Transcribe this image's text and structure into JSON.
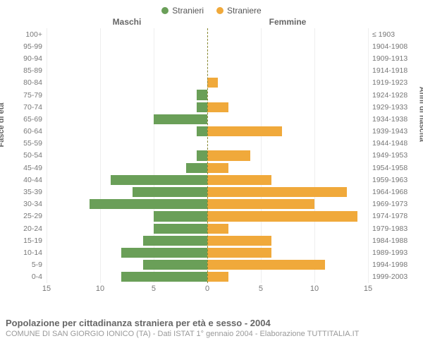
{
  "chart": {
    "type": "population-pyramid",
    "legend": [
      {
        "label": "Stranieri",
        "color": "#6a9f58"
      },
      {
        "label": "Straniere",
        "color": "#f0a93b"
      }
    ],
    "columns": {
      "left": "Maschi",
      "right": "Femmine"
    },
    "y_axis_left_title": "Fasce di età",
    "y_axis_right_title": "Anni di nascita",
    "x_max": 15,
    "x_ticks": [
      15,
      10,
      5,
      0,
      5,
      10,
      15
    ],
    "grid_color": "#eeeeee",
    "centerline_color": "#888832",
    "background_color": "#ffffff",
    "bar_colors": {
      "male": "#6a9f58",
      "female": "#f0a93b"
    },
    "label_fontsize": 10.5,
    "tick_fontsize": 11,
    "rows": [
      {
        "age": "100+",
        "birth": "≤ 1903",
        "m": 0,
        "f": 0
      },
      {
        "age": "95-99",
        "birth": "1904-1908",
        "m": 0,
        "f": 0
      },
      {
        "age": "90-94",
        "birth": "1909-1913",
        "m": 0,
        "f": 0
      },
      {
        "age": "85-89",
        "birth": "1914-1918",
        "m": 0,
        "f": 0
      },
      {
        "age": "80-84",
        "birth": "1919-1923",
        "m": 0,
        "f": 1
      },
      {
        "age": "75-79",
        "birth": "1924-1928",
        "m": 1,
        "f": 0
      },
      {
        "age": "70-74",
        "birth": "1929-1933",
        "m": 1,
        "f": 2
      },
      {
        "age": "65-69",
        "birth": "1934-1938",
        "m": 5,
        "f": 0
      },
      {
        "age": "60-64",
        "birth": "1939-1943",
        "m": 1,
        "f": 7
      },
      {
        "age": "55-59",
        "birth": "1944-1948",
        "m": 0,
        "f": 0
      },
      {
        "age": "50-54",
        "birth": "1949-1953",
        "m": 1,
        "f": 4
      },
      {
        "age": "45-49",
        "birth": "1954-1958",
        "m": 2,
        "f": 2
      },
      {
        "age": "40-44",
        "birth": "1959-1963",
        "m": 9,
        "f": 6
      },
      {
        "age": "35-39",
        "birth": "1964-1968",
        "m": 7,
        "f": 13
      },
      {
        "age": "30-34",
        "birth": "1969-1973",
        "m": 11,
        "f": 10
      },
      {
        "age": "25-29",
        "birth": "1974-1978",
        "m": 5,
        "f": 14
      },
      {
        "age": "20-24",
        "birth": "1979-1983",
        "m": 5,
        "f": 2
      },
      {
        "age": "15-19",
        "birth": "1984-1988",
        "m": 6,
        "f": 6
      },
      {
        "age": "10-14",
        "birth": "1989-1993",
        "m": 8,
        "f": 6
      },
      {
        "age": "5-9",
        "birth": "1994-1998",
        "m": 6,
        "f": 11
      },
      {
        "age": "0-4",
        "birth": "1999-2003",
        "m": 8,
        "f": 2
      }
    ],
    "caption_main": "Popolazione per cittadinanza straniera per età e sesso - 2004",
    "caption_sub": "COMUNE DI SAN GIORGIO IONICO (TA) - Dati ISTAT 1° gennaio 2004 - Elaborazione TUTTITALIA.IT"
  }
}
